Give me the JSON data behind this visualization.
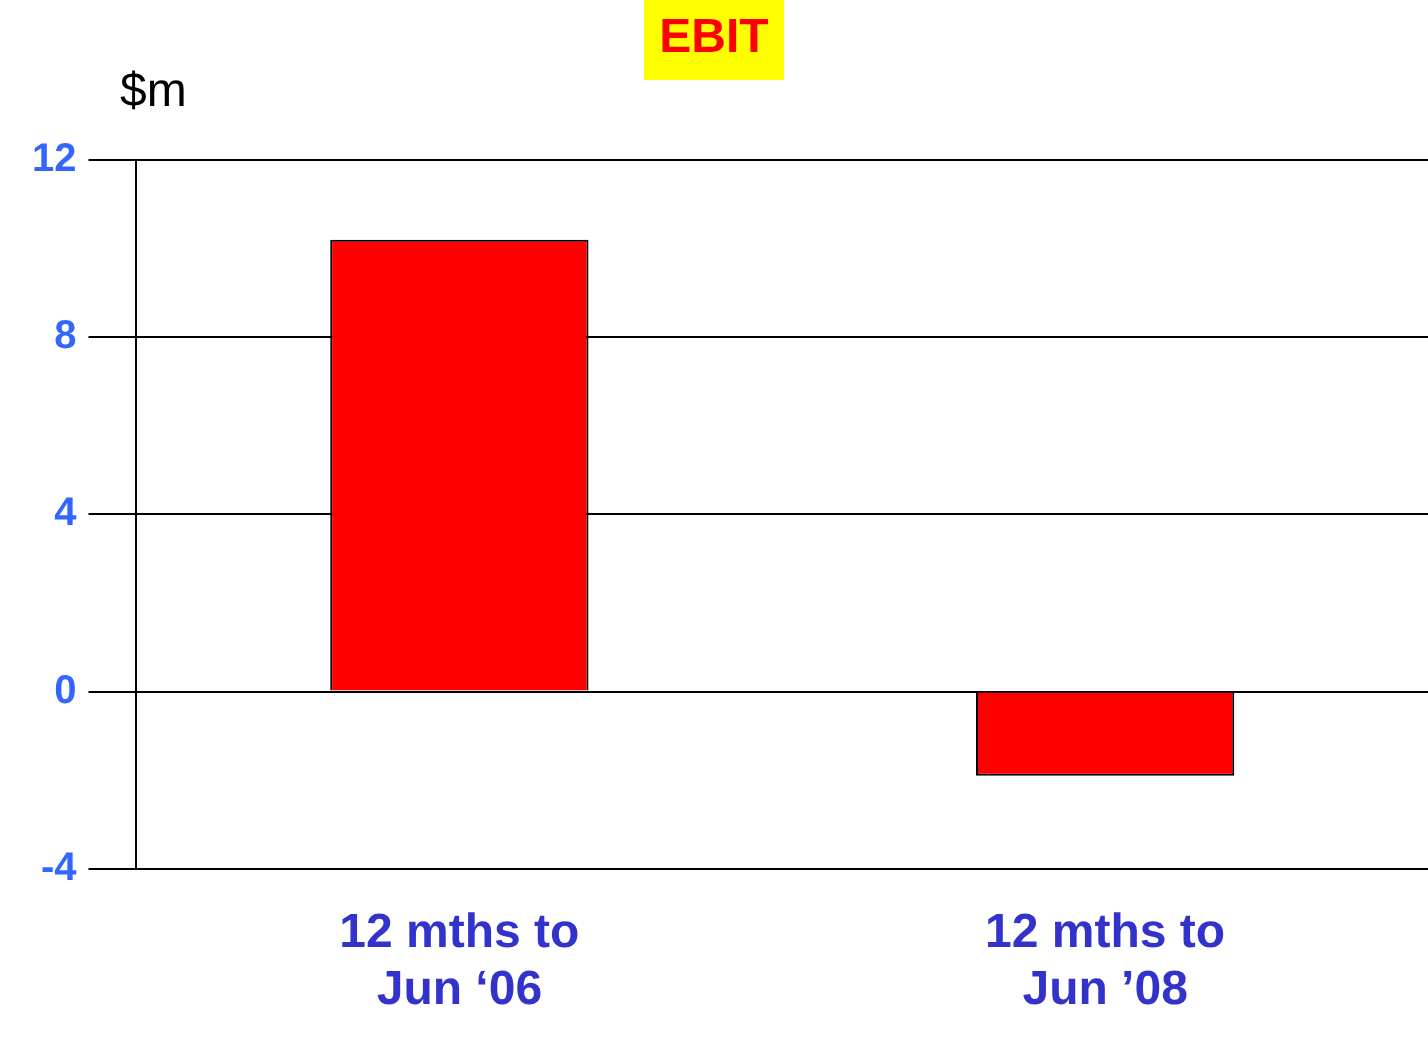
{
  "chart_data": {
    "type": "bar",
    "title": "EBIT",
    "ylabel": "$m",
    "categories": [
      "12 mths to\nJun ‘06",
      "12 mths to\nJun ’08"
    ],
    "values": [
      10.2,
      -1.9
    ],
    "color": "#ff0000",
    "ylim": [
      -4,
      12
    ],
    "yticks": [
      -4,
      0,
      4,
      8,
      12
    ],
    "grid": "y",
    "legend": false
  }
}
